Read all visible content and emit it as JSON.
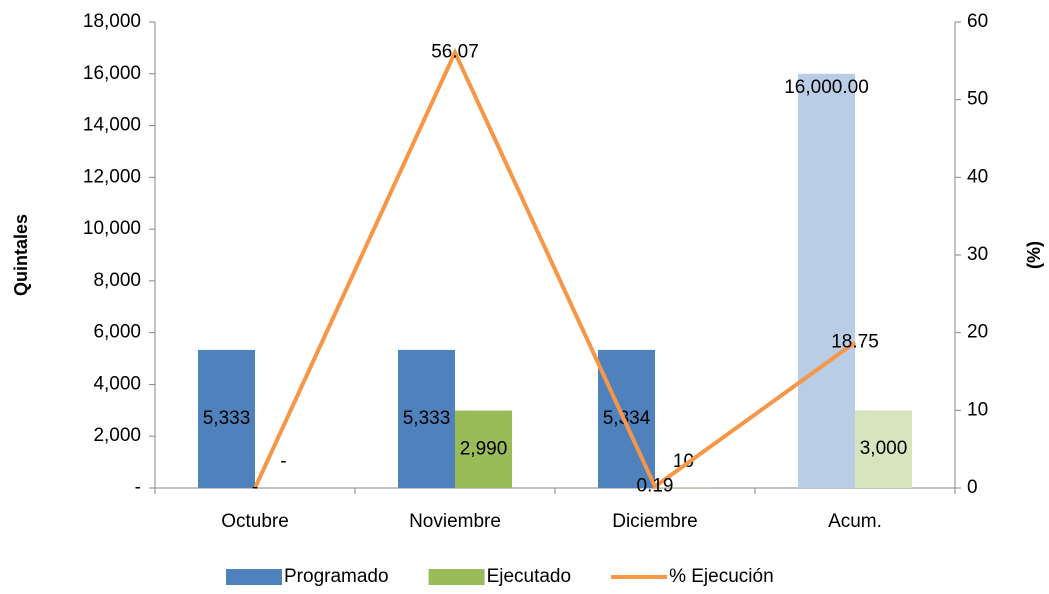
{
  "chart_data": {
    "type": "bar_line",
    "y_label": "Quintales",
    "y2_label": "(%)",
    "categories": [
      "Octubre",
      "Noviembre",
      "Diciembre",
      "Acum."
    ],
    "series": [
      {
        "name": "Programado",
        "type": "bar",
        "color": "#4f81bd",
        "colors": [
          "#4f81bd",
          "#4f81bd",
          "#4f81bd",
          "#b9cde5"
        ],
        "values": [
          5333,
          5333,
          5334,
          16000
        ],
        "value_labels": [
          "5,333",
          "5,333",
          "5,334",
          "16,000.00"
        ]
      },
      {
        "name": "Ejecutado",
        "type": "bar",
        "color": "#9bbb59",
        "colors": [
          "#9bbb59",
          "#9bbb59",
          "#9bbb59",
          "#d7e4bd"
        ],
        "values": [
          0,
          2990,
          10,
          3000
        ],
        "value_labels": [
          "-",
          "2,990",
          "10",
          "3,000"
        ]
      },
      {
        "name": "% Ejecución",
        "type": "line",
        "axis": "y2",
        "color": "#f79646",
        "values": [
          0,
          56.07,
          0.19,
          18.75
        ],
        "value_labels": [
          "-",
          "56.07",
          "0.19",
          "18.75"
        ]
      }
    ],
    "ylim": [
      0,
      18000
    ],
    "yticks": [
      {
        "value": 0,
        "label": "-"
      },
      {
        "value": 2000,
        "label": "2,000"
      },
      {
        "value": 4000,
        "label": "4,000"
      },
      {
        "value": 6000,
        "label": "6,000"
      },
      {
        "value": 8000,
        "label": "8,000"
      },
      {
        "value": 10000,
        "label": "10,000"
      },
      {
        "value": 12000,
        "label": "12,000"
      },
      {
        "value": 14000,
        "label": "14,000"
      },
      {
        "value": 16000,
        "label": "16,000"
      },
      {
        "value": 18000,
        "label": "18,000"
      }
    ],
    "y2lim": [
      0,
      60
    ],
    "y2ticks": [
      0,
      10,
      20,
      30,
      40,
      50,
      60
    ],
    "grid": false,
    "legend": "bottom"
  }
}
